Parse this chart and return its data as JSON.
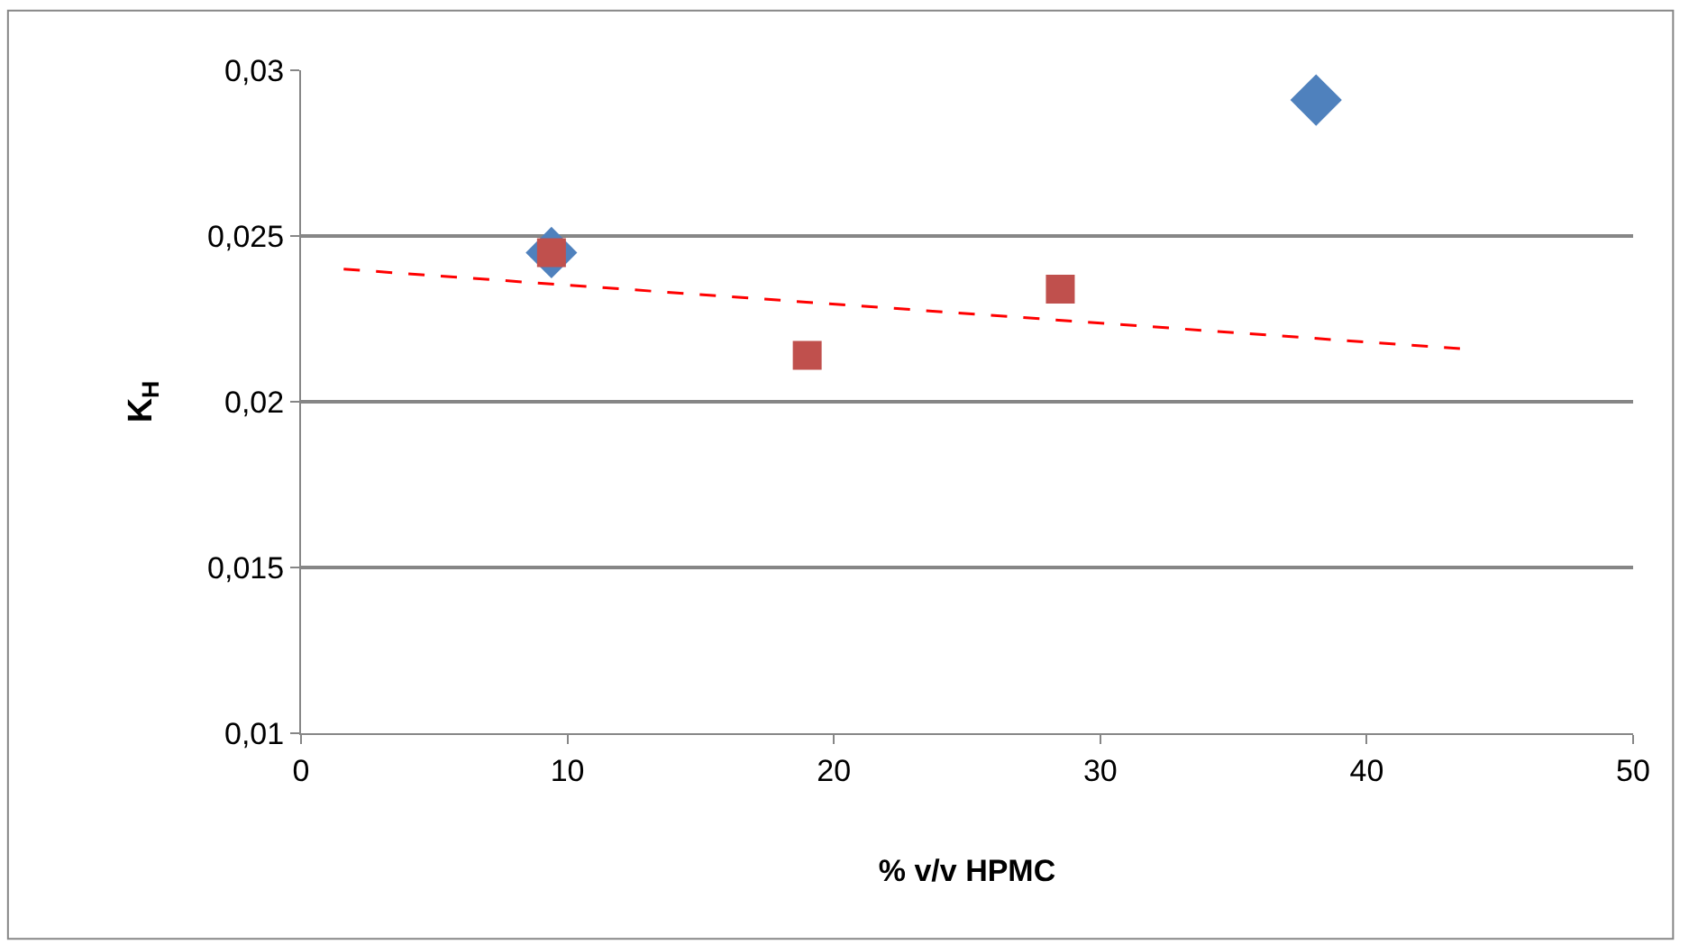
{
  "chart_data": {
    "type": "scatter",
    "xlabel": "% v/v HPMC",
    "ylabel": "K$_{H}$",
    "xlim": [
      0,
      50
    ],
    "xticks": [
      0,
      10,
      20,
      30,
      40,
      50
    ],
    "ylim": [
      0.01,
      0.03
    ],
    "yticks": [
      {
        "value": 0.01,
        "label": "0,01"
      },
      {
        "value": 0.015,
        "label": "0,015"
      },
      {
        "value": 0.02,
        "label": "0,02"
      },
      {
        "value": 0.025,
        "label": "0,025"
      },
      {
        "value": 0.03,
        "label": "0,03"
      }
    ],
    "grid": "y",
    "series": [
      {
        "marker": "diamond",
        "color": "#4f81bd",
        "x": [
          9.4,
          38.1
        ],
        "values": [
          0.0245,
          0.0291
        ]
      },
      {
        "marker": "square",
        "color": "#c0504d",
        "x": [
          9.4,
          19.0,
          28.5
        ],
        "values": [
          0.0245,
          0.0214,
          0.0234
        ]
      },
      {
        "type": "line",
        "marker": "none",
        "line_style": "dashed",
        "color": "#ff0000",
        "x": [
          1.6,
          43.5
        ],
        "values": [
          0.024,
          0.0216
        ]
      }
    ]
  }
}
